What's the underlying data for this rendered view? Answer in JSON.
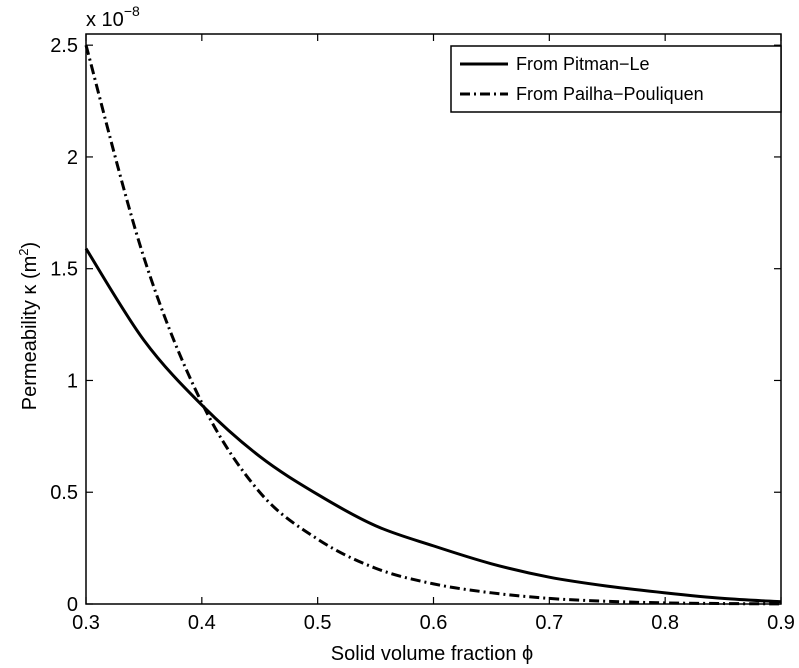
{
  "chart_data": {
    "type": "line",
    "title": "",
    "xlabel": "Solid volume fraction ϕ",
    "ylabel_main": "Permeability κ (m",
    "ylabel_sup": "2",
    "ylabel_close": ")",
    "y_scale_base": "x 10",
    "y_scale_exp": "−8",
    "xlim": [
      0.3,
      0.9
    ],
    "ylim": [
      0,
      2.55
    ],
    "x_ticks": [
      0.3,
      0.4,
      0.5,
      0.6,
      0.7,
      0.8,
      0.9
    ],
    "x_tick_labels": [
      "0.3",
      "0.4",
      "0.5",
      "0.6",
      "0.7",
      "0.8",
      "0.9"
    ],
    "y_ticks": [
      0,
      0.5,
      1,
      1.5,
      2,
      2.5
    ],
    "y_tick_labels": [
      "0",
      "0.5",
      "1",
      "1.5",
      "2",
      "2.5"
    ],
    "grid": false,
    "legend_position": "top-right",
    "x": [
      0.3,
      0.35,
      0.4,
      0.45,
      0.5,
      0.55,
      0.6,
      0.65,
      0.7,
      0.75,
      0.8,
      0.85,
      0.9
    ],
    "series": [
      {
        "name": "From Pitman−Le",
        "style": "solid",
        "color": "#000000",
        "values": [
          1.59,
          1.18,
          0.89,
          0.66,
          0.49,
          0.35,
          0.26,
          0.18,
          0.12,
          0.08,
          0.05,
          0.025,
          0.01
        ]
      },
      {
        "name": "From Pailha−Pouliquen",
        "style": "dashdot",
        "color": "#000000",
        "values": [
          2.5,
          1.55,
          0.9,
          0.5,
          0.29,
          0.16,
          0.09,
          0.05,
          0.025,
          0.012,
          0.005,
          0.002,
          0.0005
        ]
      }
    ]
  }
}
